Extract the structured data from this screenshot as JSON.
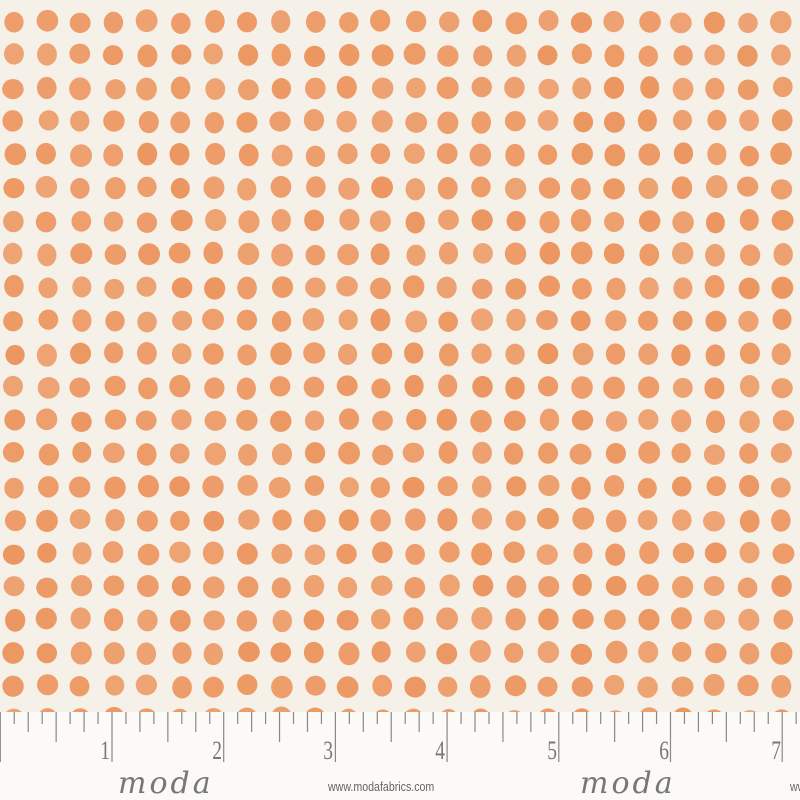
{
  "fabric": {
    "pattern": "polka-dot-grid",
    "background_color": "#f6f1e8",
    "dot_color": "#ec9660"
  },
  "ruler": {
    "unit": "inch",
    "numbers": [
      "1",
      "2",
      "3",
      "4",
      "5",
      "6",
      "7"
    ],
    "logos": [
      {
        "brand": "moda",
        "url": "www.modafabrics.com"
      },
      {
        "brand": "moda",
        "url": "www.modafabrics.com"
      }
    ],
    "tick_color": "#888888"
  }
}
